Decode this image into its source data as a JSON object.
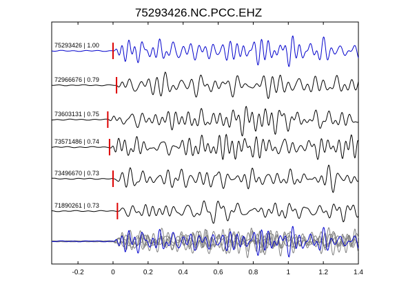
{
  "chart_data": {
    "type": "line",
    "title": "75293426.NC.PCC.EHZ",
    "xlabel": "",
    "ylabel": "",
    "xlim": [
      -0.35,
      1.4
    ],
    "xticks": [
      -0.2,
      0,
      0.2,
      0.4,
      0.6,
      0.8,
      1,
      1.2,
      1.4
    ],
    "xtick_labels": [
      "-0.2",
      "0",
      "0.2",
      "0.4",
      "0.6",
      "0.8",
      "1",
      "1.2",
      "1.4"
    ],
    "grid": false,
    "colors": {
      "reference": "#0000cc",
      "trace": "#000000",
      "stack": "#808080",
      "pick": "#dd0000"
    },
    "series": [
      {
        "label": "75293426 | 1.00",
        "pick_x": 0.0,
        "color": "reference"
      },
      {
        "label": "72966676 | 0.79",
        "pick_x": 0.02,
        "color": "trace"
      },
      {
        "label": "73603131 | 0.75",
        "pick_x": -0.03,
        "color": "trace"
      },
      {
        "label": "73571486 | 0.74",
        "pick_x": -0.02,
        "color": "trace"
      },
      {
        "label": "73496670 | 0.73",
        "pick_x": 0.0,
        "color": "trace"
      },
      {
        "label": "71890261 | 0.73",
        "pick_x": 0.025,
        "color": "trace"
      }
    ],
    "overlay": {
      "description_visible": false,
      "color": "stack"
    }
  }
}
